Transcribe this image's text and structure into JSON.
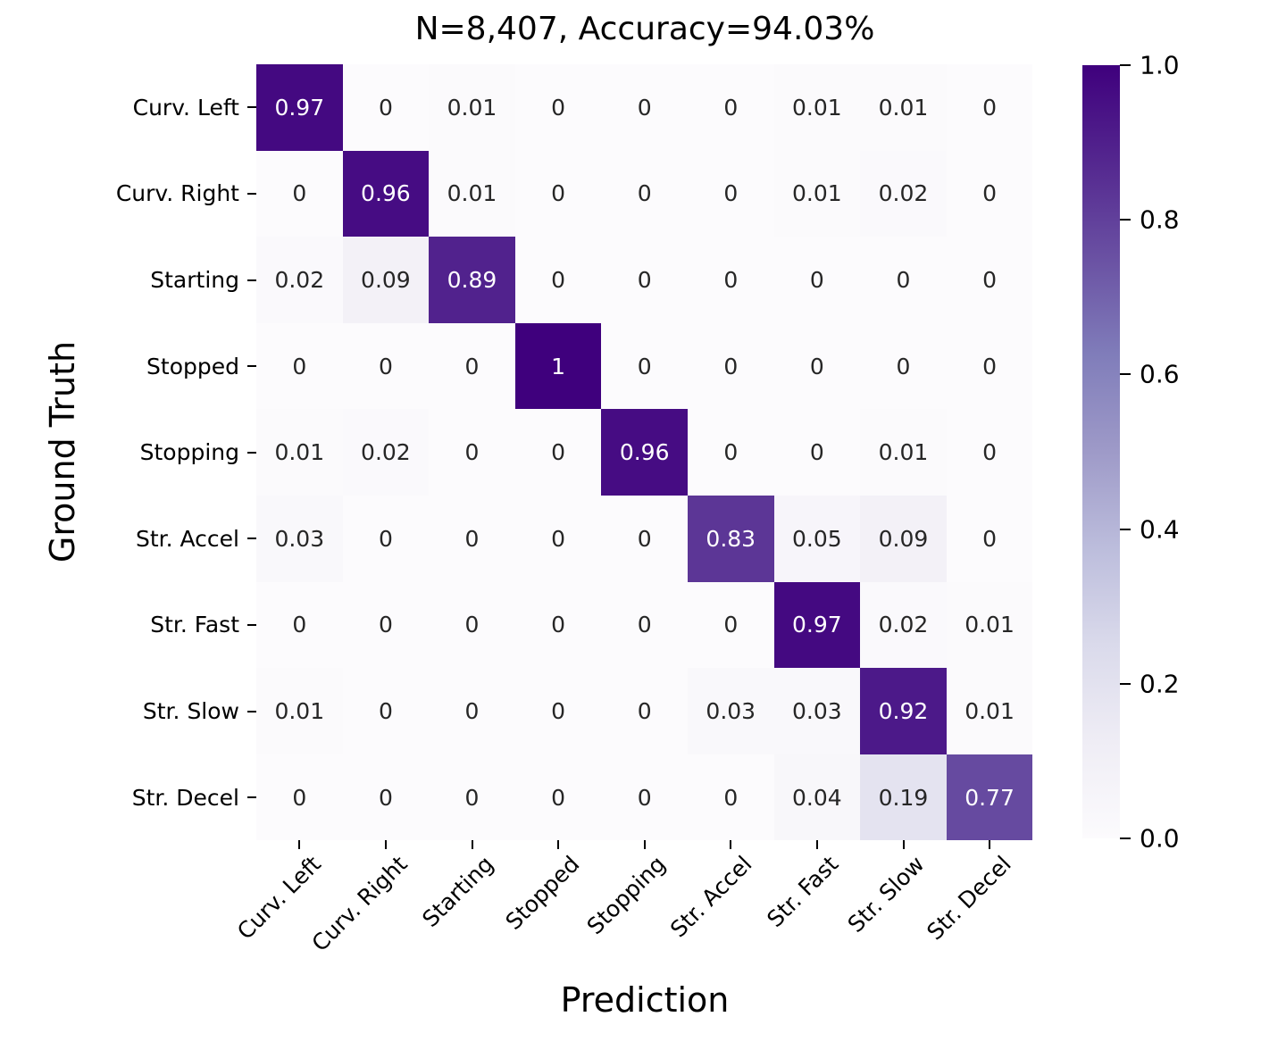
{
  "figure": {
    "title": "N=8,407, Accuracy=94.03%",
    "xlabel": "Prediction",
    "ylabel": "Ground Truth"
  },
  "chart_data": {
    "type": "heatmap",
    "title": "N=8,407, Accuracy=94.03%",
    "xlabel": "Prediction",
    "ylabel": "Ground Truth",
    "categories": [
      "Curv. Left",
      "Curv. Right",
      "Starting",
      "Stopped",
      "Stopping",
      "Str. Accel",
      "Str. Fast",
      "Str. Slow",
      "Str. Decel"
    ],
    "x_tick_labels": [
      "Curv. Left",
      "Curv. Right",
      "Starting",
      "Stopped",
      "Stopping",
      "Str. Accel",
      "Str. Fast",
      "Str. Slow",
      "Str. Decel"
    ],
    "y_tick_labels": [
      "Curv. Left",
      "Curv. Right",
      "Starting",
      "Stopped",
      "Stopping",
      "Str. Accel",
      "Str. Fast",
      "Str. Slow",
      "Str. Decel"
    ],
    "matrix": [
      [
        0.97,
        0,
        0.01,
        0,
        0,
        0,
        0.01,
        0.01,
        0
      ],
      [
        0,
        0.96,
        0.01,
        0,
        0,
        0,
        0.01,
        0.02,
        0
      ],
      [
        0.02,
        0.09,
        0.89,
        0,
        0,
        0,
        0,
        0,
        0
      ],
      [
        0,
        0,
        0,
        1,
        0,
        0,
        0,
        0,
        0
      ],
      [
        0.01,
        0.02,
        0,
        0,
        0.96,
        0,
        0,
        0.01,
        0
      ],
      [
        0.03,
        0,
        0,
        0,
        0,
        0.83,
        0.05,
        0.09,
        0
      ],
      [
        0,
        0,
        0,
        0,
        0,
        0,
        0.97,
        0.02,
        0.01
      ],
      [
        0.01,
        0,
        0,
        0,
        0,
        0.03,
        0.03,
        0.92,
        0.01
      ],
      [
        0,
        0,
        0,
        0,
        0,
        0,
        0.04,
        0.19,
        0.77
      ]
    ],
    "cell_text": [
      [
        "0.97",
        "0",
        "0.01",
        "0",
        "0",
        "0",
        "0.01",
        "0.01",
        "0"
      ],
      [
        "0",
        "0.96",
        "0.01",
        "0",
        "0",
        "0",
        "0.01",
        "0.02",
        "0"
      ],
      [
        "0.02",
        "0.09",
        "0.89",
        "0",
        "0",
        "0",
        "0",
        "0",
        "0"
      ],
      [
        "0",
        "0",
        "0",
        "1",
        "0",
        "0",
        "0",
        "0",
        "0"
      ],
      [
        "0.01",
        "0.02",
        "0",
        "0",
        "0.96",
        "0",
        "0",
        "0.01",
        "0"
      ],
      [
        "0.03",
        "0",
        "0",
        "0",
        "0",
        "0.83",
        "0.05",
        "0.09",
        "0"
      ],
      [
        "0",
        "0",
        "0",
        "0",
        "0",
        "0",
        "0.97",
        "0.02",
        "0.01"
      ],
      [
        "0.01",
        "0",
        "0",
        "0",
        "0",
        "0.03",
        "0.03",
        "0.92",
        "0.01"
      ],
      [
        "0",
        "0",
        "0",
        "0",
        "0",
        "0",
        "0.04",
        "0.19",
        "0.77"
      ]
    ],
    "vmin": 0,
    "vmax": 1,
    "colormap": {
      "name": "Purples",
      "stops": [
        "#fcfbfd",
        "#efedf5",
        "#dadaeb",
        "#bcbddc",
        "#9e9ac8",
        "#807dba",
        "#6a51a3",
        "#54278f",
        "#3f007d"
      ]
    },
    "colorbar": {
      "position": "right",
      "tick_labels": [
        "1.0",
        "0.8",
        "0.6",
        "0.4",
        "0.2",
        "0.0"
      ]
    },
    "annotation_colors": {
      "light": "#ffffff",
      "dark": "#262626",
      "threshold": 0.5
    },
    "tick_color": "#000000",
    "grid": false
  }
}
